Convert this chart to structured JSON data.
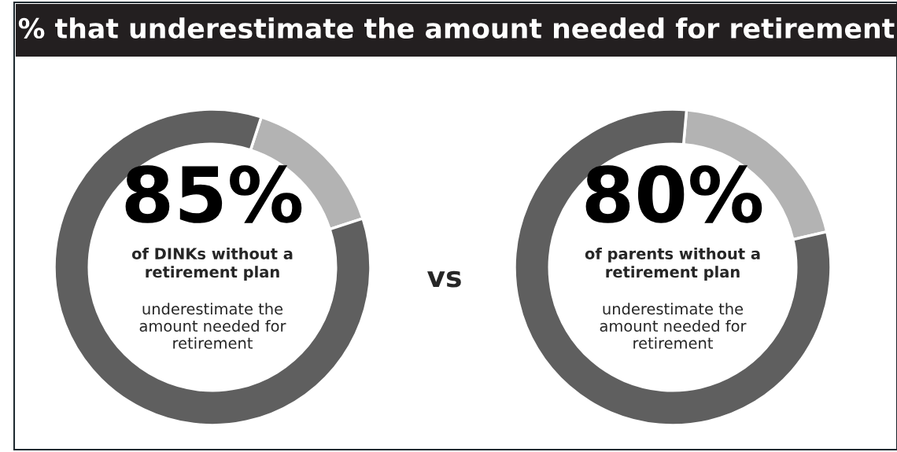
{
  "chart_data": [
    {
      "type": "donut",
      "title": "% that underestimate the amount needed for retirement",
      "categories": [
        null,
        null
      ],
      "values": [
        15,
        85
      ],
      "colors": [
        "#b3b3b3",
        "#5f5f5f"
      ],
      "value_labels": [
        null,
        "85%"
      ],
      "annotations": [
        "of DINKs without a\nretirement plan",
        "underestimate the\namount needed for\nretirement"
      ]
    },
    {
      "type": "other",
      "annotations": [
        "vs"
      ]
    },
    {
      "type": "donut",
      "categories": [
        null,
        null
      ],
      "values": [
        20,
        80
      ],
      "colors": [
        "#b3b3b3",
        "#5f5f5f"
      ],
      "value_labels": [
        null,
        "80%"
      ],
      "annotations": [
        "of parents without a\nretirement plan",
        "underestimate the\namount needed for\nretirement"
      ]
    }
  ]
}
